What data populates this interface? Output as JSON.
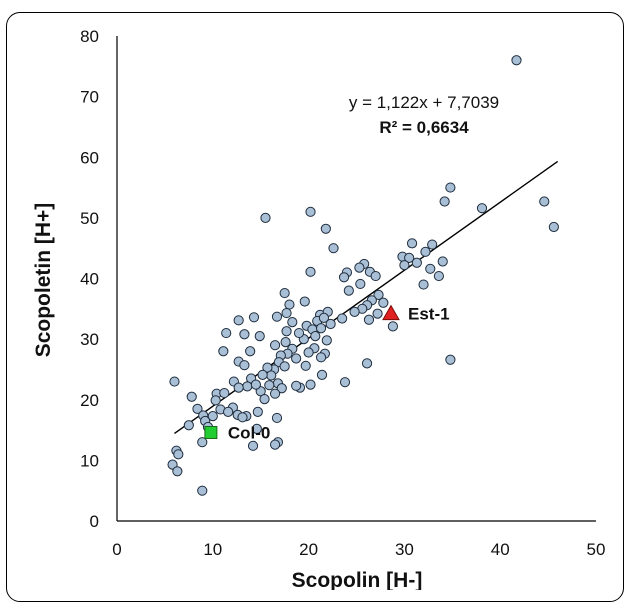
{
  "chart_data": {
    "type": "scatter",
    "xlabel": "Scopolin [H-]",
    "ylabel": "Scopoletin [H+]",
    "xlim": [
      0,
      50
    ],
    "ylim": [
      0,
      80
    ],
    "x_ticks": [
      "0",
      "10",
      "20",
      "30",
      "40",
      "50"
    ],
    "y_ticks": [
      "0",
      "10",
      "20",
      "30",
      "40",
      "50",
      "60",
      "70",
      "80"
    ],
    "grid": false,
    "trendline": {
      "slope": 1.122,
      "intercept": 7.7039,
      "x_range": [
        6,
        46
      ],
      "equation_label": "y = 1,122x + 7,7039",
      "r2_label": "R² = 0,6634"
    },
    "point_color": "#a8bfd6",
    "point_edge_color": "#1f2d3d",
    "points": [
      [
        41.7,
        76
      ],
      [
        34.8,
        55
      ],
      [
        44.6,
        52.7
      ],
      [
        34.2,
        52.7
      ],
      [
        38.1,
        51.6
      ],
      [
        45.6,
        48.5
      ],
      [
        32.9,
        45.6
      ],
      [
        30.8,
        45.8
      ],
      [
        29.8,
        43.6
      ],
      [
        30.5,
        43.4
      ],
      [
        32.2,
        44.4
      ],
      [
        31.3,
        42.6
      ],
      [
        34.0,
        42.8
      ],
      [
        30.0,
        42.2
      ],
      [
        32.7,
        41.6
      ],
      [
        33.6,
        40.4
      ],
      [
        32.0,
        39.0
      ],
      [
        34.8,
        26.6
      ],
      [
        15.5,
        50.0
      ],
      [
        20.2,
        51.0
      ],
      [
        21.8,
        48.2
      ],
      [
        22.6,
        45.0
      ],
      [
        25.8,
        42.4
      ],
      [
        25.3,
        41.8
      ],
      [
        26.4,
        41.1
      ],
      [
        27.0,
        40.4
      ],
      [
        24.0,
        41.0
      ],
      [
        23.7,
        40.2
      ],
      [
        25.4,
        39.1
      ],
      [
        24.2,
        38.0
      ],
      [
        27.3,
        37.3
      ],
      [
        26.6,
        36.4
      ],
      [
        27.8,
        36.0
      ],
      [
        26.1,
        35.6
      ],
      [
        25.6,
        35.0
      ],
      [
        24.8,
        34.5
      ],
      [
        27.2,
        34.2
      ],
      [
        26.3,
        33.2
      ],
      [
        28.8,
        32.1
      ],
      [
        26.1,
        26.0
      ],
      [
        20.2,
        41.1
      ],
      [
        23.5,
        33.4
      ],
      [
        23.8,
        22.9
      ],
      [
        21.2,
        34.0
      ],
      [
        22.0,
        34.5
      ],
      [
        20.9,
        33.0
      ],
      [
        21.6,
        33.5
      ],
      [
        22.3,
        32.5
      ],
      [
        19.8,
        32.2
      ],
      [
        20.4,
        31.6
      ],
      [
        21.3,
        31.8
      ],
      [
        20.7,
        30.5
      ],
      [
        19.5,
        30.0
      ],
      [
        21.9,
        29.8
      ],
      [
        20.6,
        28.5
      ],
      [
        21.7,
        27.6
      ],
      [
        20.0,
        27.8
      ],
      [
        21.3,
        27.0
      ],
      [
        19.7,
        25.6
      ],
      [
        21.4,
        24.1
      ],
      [
        20.2,
        22.5
      ],
      [
        19.1,
        22.0
      ],
      [
        18.7,
        22.3
      ],
      [
        19.6,
        36.2
      ],
      [
        17.5,
        37.6
      ],
      [
        18.0,
        35.7
      ],
      [
        17.7,
        34.3
      ],
      [
        16.7,
        33.7
      ],
      [
        18.3,
        32.8
      ],
      [
        17.7,
        31.3
      ],
      [
        19.0,
        31.0
      ],
      [
        17.6,
        29.5
      ],
      [
        16.5,
        29.0
      ],
      [
        18.3,
        28.4
      ],
      [
        17.8,
        27.6
      ],
      [
        17.1,
        27.3
      ],
      [
        18.7,
        26.8
      ],
      [
        16.9,
        26.2
      ],
      [
        17.5,
        25.5
      ],
      [
        16.4,
        25.0
      ],
      [
        15.7,
        25.3
      ],
      [
        16.1,
        24.0
      ],
      [
        16.8,
        22.7
      ],
      [
        15.9,
        22.4
      ],
      [
        17.2,
        21.9
      ],
      [
        16.5,
        21.0
      ],
      [
        15.0,
        21.4
      ],
      [
        16.7,
        17.0
      ],
      [
        16.8,
        13.0
      ],
      [
        16.5,
        12.6
      ],
      [
        14.3,
        33.6
      ],
      [
        12.7,
        33.1
      ],
      [
        13.3,
        30.8
      ],
      [
        14.9,
        30.5
      ],
      [
        11.4,
        31.0
      ],
      [
        13.9,
        28.0
      ],
      [
        12.7,
        26.3
      ],
      [
        13.3,
        25.7
      ],
      [
        12.2,
        23.0
      ],
      [
        14.0,
        23.5
      ],
      [
        13.6,
        22.2
      ],
      [
        12.7,
        22.0
      ],
      [
        14.5,
        22.5
      ],
      [
        15.2,
        24.1
      ],
      [
        11.1,
        28.0
      ],
      [
        10.4,
        21.0
      ],
      [
        11.2,
        21.1
      ],
      [
        10.3,
        19.9
      ],
      [
        12.1,
        18.7
      ],
      [
        10.8,
        18.4
      ],
      [
        11.6,
        18.0
      ],
      [
        10.0,
        17.3
      ],
      [
        12.6,
        17.5
      ],
      [
        13.5,
        17.3
      ],
      [
        14.7,
        18.0
      ],
      [
        15.4,
        20.1
      ],
      [
        14.6,
        15.2
      ],
      [
        13.1,
        17.1
      ],
      [
        14.2,
        12.4
      ],
      [
        7.8,
        20.5
      ],
      [
        8.4,
        18.5
      ],
      [
        9.0,
        17.4
      ],
      [
        9.2,
        16.5
      ],
      [
        7.5,
        15.8
      ],
      [
        9.5,
        15.5
      ],
      [
        8.9,
        13.0
      ],
      [
        6.0,
        23.0
      ],
      [
        6.2,
        11.6
      ],
      [
        6.4,
        11.0
      ],
      [
        5.8,
        9.3
      ],
      [
        6.3,
        8.2
      ],
      [
        8.9,
        5.0
      ]
    ],
    "annotations": [
      {
        "label": "Col-0",
        "x": 9.8,
        "y": 14.6,
        "marker": "square",
        "color": "#22cc33"
      },
      {
        "label": "Est-1",
        "x": 28.6,
        "y": 34.2,
        "marker": "triangle",
        "color": "#e02020"
      }
    ]
  }
}
